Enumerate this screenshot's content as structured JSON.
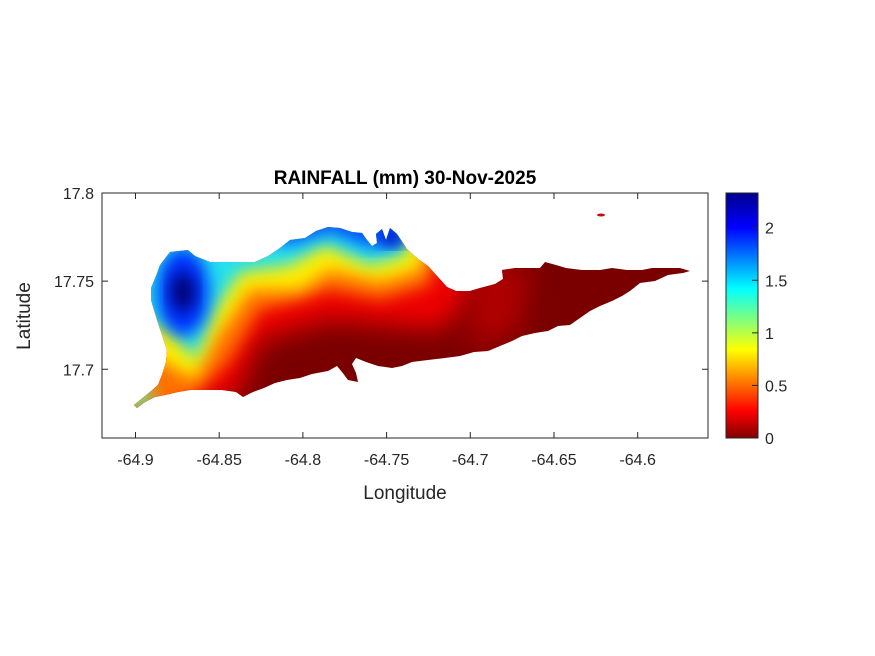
{
  "chart_data": {
    "type": "heatmap",
    "title": "RAINFALL (mm) 30-Nov-2025",
    "xlabel": "Longitude",
    "ylabel": "Latitude",
    "xlim": [
      -64.92,
      -64.558
    ],
    "ylim": [
      17.661,
      17.8
    ],
    "xticks": [
      -64.9,
      -64.85,
      -64.8,
      -64.75,
      -64.7,
      -64.65,
      -64.6
    ],
    "xtick_labels": [
      "-64.9",
      "-64.85",
      "-64.8",
      "-64.75",
      "-64.7",
      "-64.65",
      "-64.6"
    ],
    "yticks": [
      17.7,
      17.75,
      17.8
    ],
    "ytick_labels": [
      "17.7",
      "17.75",
      "17.8"
    ],
    "grid": false,
    "colormap": "jet",
    "colorbar": {
      "location": "right",
      "clim": [
        0,
        2.33
      ],
      "ticks": [
        0,
        0.5,
        1,
        1.5,
        2
      ],
      "tick_labels": [
        "0",
        "0.5",
        "1",
        "1.5",
        "2"
      ]
    },
    "features": [
      {
        "lon": -64.873,
        "lat": 17.743,
        "value": 2.3
      },
      {
        "lon": -64.745,
        "lat": 17.778,
        "value": 2.1
      },
      {
        "lon": -64.775,
        "lat": 17.777,
        "value": 1.6
      },
      {
        "lon": -64.78,
        "lat": 17.715,
        "value": 0.05
      },
      {
        "lon": -64.65,
        "lat": 17.74,
        "value": 0.05
      },
      {
        "lon": -64.9,
        "lat": 17.68,
        "value": 1.2
      }
    ]
  }
}
